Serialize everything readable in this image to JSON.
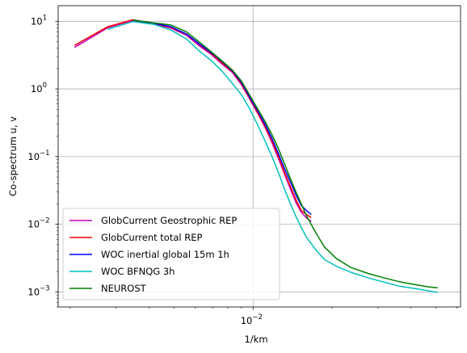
{
  "chart_data": {
    "type": "line",
    "title": "",
    "xlabel": "1/km",
    "ylabel": "Co-spectrum u, v",
    "xscale": "log",
    "yscale": "log",
    "xlim": [
      0.0018,
      0.062
    ],
    "ylim": [
      0.0006,
      17
    ],
    "grid": true,
    "legend_position": "lower-left",
    "x_ticks": [
      {
        "value": 0.01,
        "label": "10",
        "exp": "−2"
      }
    ],
    "y_ticks": [
      {
        "value": 10,
        "label": "10",
        "exp": "1"
      },
      {
        "value": 1,
        "label": "10",
        "exp": "0"
      },
      {
        "value": 0.1,
        "label": "10",
        "exp": "−1"
      },
      {
        "value": 0.01,
        "label": "10",
        "exp": "−2"
      },
      {
        "value": 0.001,
        "label": "10",
        "exp": "−3"
      }
    ],
    "series": [
      {
        "name": "GlobCurrent Geostrophic REP",
        "color": "#bf00bf",
        "points": [
          [
            0.00208,
            4.1
          ],
          [
            0.00278,
            8.0
          ],
          [
            0.00347,
            10.3
          ],
          [
            0.00417,
            9.1
          ],
          [
            0.00486,
            7.9
          ],
          [
            0.00556,
            6.2
          ],
          [
            0.00625,
            4.3
          ],
          [
            0.00694,
            3.2
          ],
          [
            0.00764,
            2.3
          ],
          [
            0.00833,
            1.75
          ],
          [
            0.00903,
            1.15
          ],
          [
            0.00972,
            0.7
          ],
          [
            0.01042,
            0.43
          ],
          [
            0.01111,
            0.27
          ],
          [
            0.01181,
            0.16
          ],
          [
            0.0125,
            0.093
          ],
          [
            0.01319,
            0.055
          ],
          [
            0.01389,
            0.033
          ],
          [
            0.01458,
            0.021
          ],
          [
            0.01528,
            0.015
          ],
          [
            0.01597,
            0.0125
          ],
          [
            0.01667,
            0.011
          ]
        ]
      },
      {
        "name": "GlobCurrent total REP",
        "color": "#ff0000",
        "points": [
          [
            0.00208,
            4.4
          ],
          [
            0.00278,
            8.3
          ],
          [
            0.00347,
            10.5
          ],
          [
            0.00417,
            9.3
          ],
          [
            0.00486,
            8.1
          ],
          [
            0.00556,
            6.4
          ],
          [
            0.00625,
            4.5
          ],
          [
            0.00694,
            3.3
          ],
          [
            0.00764,
            2.4
          ],
          [
            0.00833,
            1.8
          ],
          [
            0.00903,
            1.2
          ],
          [
            0.00972,
            0.72
          ],
          [
            0.01042,
            0.44
          ],
          [
            0.01111,
            0.28
          ],
          [
            0.01181,
            0.17
          ],
          [
            0.0125,
            0.1
          ],
          [
            0.01319,
            0.058
          ],
          [
            0.01389,
            0.036
          ],
          [
            0.01458,
            0.023
          ],
          [
            0.01528,
            0.016
          ],
          [
            0.01597,
            0.014
          ],
          [
            0.01667,
            0.0125
          ]
        ]
      },
      {
        "name": "WOC inertial global 15m 1h",
        "color": "#0000ff",
        "points": [
          [
            0.00347,
            10.4
          ],
          [
            0.00417,
            9.4
          ],
          [
            0.00486,
            8.3
          ],
          [
            0.00556,
            6.5
          ],
          [
            0.00625,
            4.6
          ],
          [
            0.00694,
            3.4
          ],
          [
            0.00764,
            2.5
          ],
          [
            0.00833,
            1.85
          ],
          [
            0.00903,
            1.25
          ],
          [
            0.00972,
            0.75
          ],
          [
            0.01042,
            0.47
          ],
          [
            0.01111,
            0.3
          ],
          [
            0.01181,
            0.185
          ],
          [
            0.0125,
            0.11
          ],
          [
            0.01319,
            0.066
          ],
          [
            0.01389,
            0.042
          ],
          [
            0.01458,
            0.027
          ],
          [
            0.01528,
            0.019
          ],
          [
            0.01597,
            0.016
          ],
          [
            0.01667,
            0.014
          ]
        ]
      },
      {
        "name": "WOC BFNQG 3h",
        "color": "#00bfbf",
        "points": [
          [
            0.00278,
            7.6
          ],
          [
            0.00347,
            9.9
          ],
          [
            0.00417,
            9.0
          ],
          [
            0.00486,
            7.4
          ],
          [
            0.00556,
            5.5
          ],
          [
            0.00625,
            3.6
          ],
          [
            0.00694,
            2.6
          ],
          [
            0.00764,
            1.8
          ],
          [
            0.00833,
            1.2
          ],
          [
            0.00903,
            0.82
          ],
          [
            0.00972,
            0.5
          ],
          [
            0.01042,
            0.29
          ],
          [
            0.01111,
            0.17
          ],
          [
            0.01181,
            0.1
          ],
          [
            0.0125,
            0.058
          ],
          [
            0.01319,
            0.033
          ],
          [
            0.01389,
            0.02
          ],
          [
            0.01458,
            0.013
          ],
          [
            0.01528,
            0.009
          ],
          [
            0.01597,
            0.0065
          ],
          [
            0.01736,
            0.0042
          ],
          [
            0.01875,
            0.003
          ],
          [
            0.02083,
            0.0024
          ],
          [
            0.02361,
            0.00195
          ],
          [
            0.02778,
            0.0016
          ],
          [
            0.03194,
            0.00138
          ],
          [
            0.03611,
            0.00122
          ],
          [
            0.04167,
            0.00112
          ],
          [
            0.04722,
            0.00103
          ],
          [
            0.05069,
            0.00098
          ]
        ]
      },
      {
        "name": "NEUROST",
        "color": "#008000",
        "points": [
          [
            0.00347,
            10.4
          ],
          [
            0.00417,
            9.5
          ],
          [
            0.00486,
            8.8
          ],
          [
            0.00556,
            7.0
          ],
          [
            0.00625,
            4.9
          ],
          [
            0.00694,
            3.5
          ],
          [
            0.00764,
            2.55
          ],
          [
            0.00833,
            1.9
          ],
          [
            0.00903,
            1.3
          ],
          [
            0.00972,
            0.8
          ],
          [
            0.01042,
            0.5
          ],
          [
            0.01111,
            0.33
          ],
          [
            0.01181,
            0.21
          ],
          [
            0.0125,
            0.13
          ],
          [
            0.01319,
            0.078
          ],
          [
            0.01389,
            0.047
          ],
          [
            0.01458,
            0.03
          ],
          [
            0.01528,
            0.02
          ],
          [
            0.01597,
            0.0135
          ],
          [
            0.01736,
            0.0075
          ],
          [
            0.01875,
            0.0046
          ],
          [
            0.02083,
            0.0031
          ],
          [
            0.02361,
            0.0023
          ],
          [
            0.02778,
            0.00185
          ],
          [
            0.03194,
            0.0016
          ],
          [
            0.03611,
            0.00142
          ],
          [
            0.04167,
            0.00128
          ],
          [
            0.04722,
            0.00118
          ],
          [
            0.05069,
            0.00115
          ]
        ]
      }
    ]
  }
}
